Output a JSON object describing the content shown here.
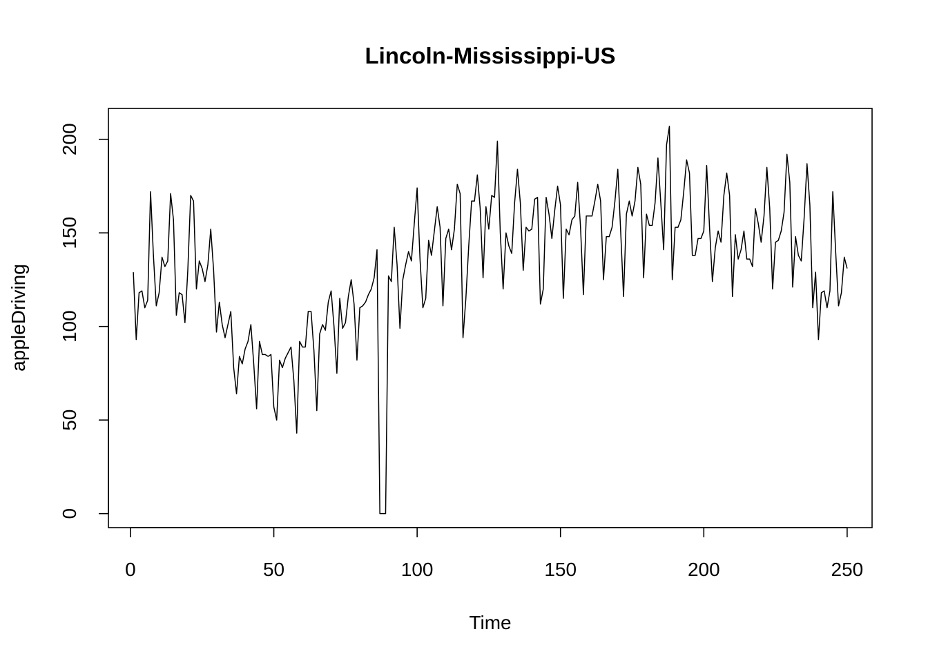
{
  "chart_data": {
    "type": "line",
    "title": "Lincoln-Mississippi-US",
    "xlabel": "Time",
    "ylabel": "appleDriving",
    "xlim": [
      -7.7,
      258.7
    ],
    "ylim": [
      -7.5,
      216.5
    ],
    "xticks": [
      0,
      50,
      100,
      150,
      200,
      250
    ],
    "yticks": [
      0,
      50,
      100,
      150,
      200
    ],
    "grid": false,
    "legend": "none",
    "series": [
      {
        "x_start": 1,
        "values": [
          129,
          93,
          118,
          119,
          110,
          114,
          172,
          138,
          111,
          118,
          137,
          132,
          135,
          171,
          157,
          106,
          118,
          117,
          102,
          130,
          170,
          167,
          120,
          135,
          131,
          124,
          133,
          152,
          130,
          97,
          113,
          101,
          94,
          101,
          108,
          78,
          64,
          84,
          80,
          88,
          92,
          101,
          80,
          56,
          92,
          85,
          85,
          84,
          85,
          57,
          50,
          82,
          78,
          83,
          86,
          89,
          71,
          43,
          92,
          89,
          89,
          108,
          108,
          87,
          55,
          96,
          101,
          98,
          113,
          119,
          100,
          75,
          115,
          99,
          102,
          116,
          125,
          112,
          82,
          110,
          111,
          113,
          117,
          120,
          126,
          141,
          0,
          0,
          0,
          127,
          124,
          153,
          133,
          99,
          125,
          133,
          140,
          135,
          155,
          174,
          136,
          110,
          115,
          146,
          138,
          151,
          164,
          153,
          111,
          147,
          152,
          141,
          152,
          176,
          171,
          94,
          115,
          143,
          167,
          167,
          181,
          163,
          126,
          164,
          152,
          170,
          169,
          199,
          150,
          120,
          150,
          143,
          139,
          166,
          184,
          166,
          130,
          153,
          151,
          152,
          168,
          169,
          112,
          120,
          169,
          160,
          147,
          162,
          175,
          165,
          115,
          152,
          149,
          157,
          159,
          177,
          153,
          117,
          159,
          159,
          159,
          167,
          176,
          167,
          125,
          148,
          148,
          153,
          167,
          184,
          151,
          116,
          160,
          167,
          159,
          167,
          185,
          176,
          126,
          160,
          154,
          154,
          166,
          190,
          166,
          141,
          197,
          207,
          125,
          153,
          153,
          157,
          172,
          189,
          182,
          138,
          138,
          147,
          147,
          151,
          186,
          153,
          124,
          142,
          151,
          145,
          170,
          182,
          170,
          116,
          149,
          136,
          141,
          151,
          136,
          136,
          132,
          163,
          155,
          145,
          159,
          185,
          163,
          120,
          145,
          146,
          151,
          161,
          192,
          177,
          121,
          148,
          138,
          135,
          158,
          187,
          165,
          110,
          129,
          93,
          118,
          119,
          110,
          119,
          172,
          140,
          111,
          118,
          137,
          131
        ]
      }
    ]
  }
}
